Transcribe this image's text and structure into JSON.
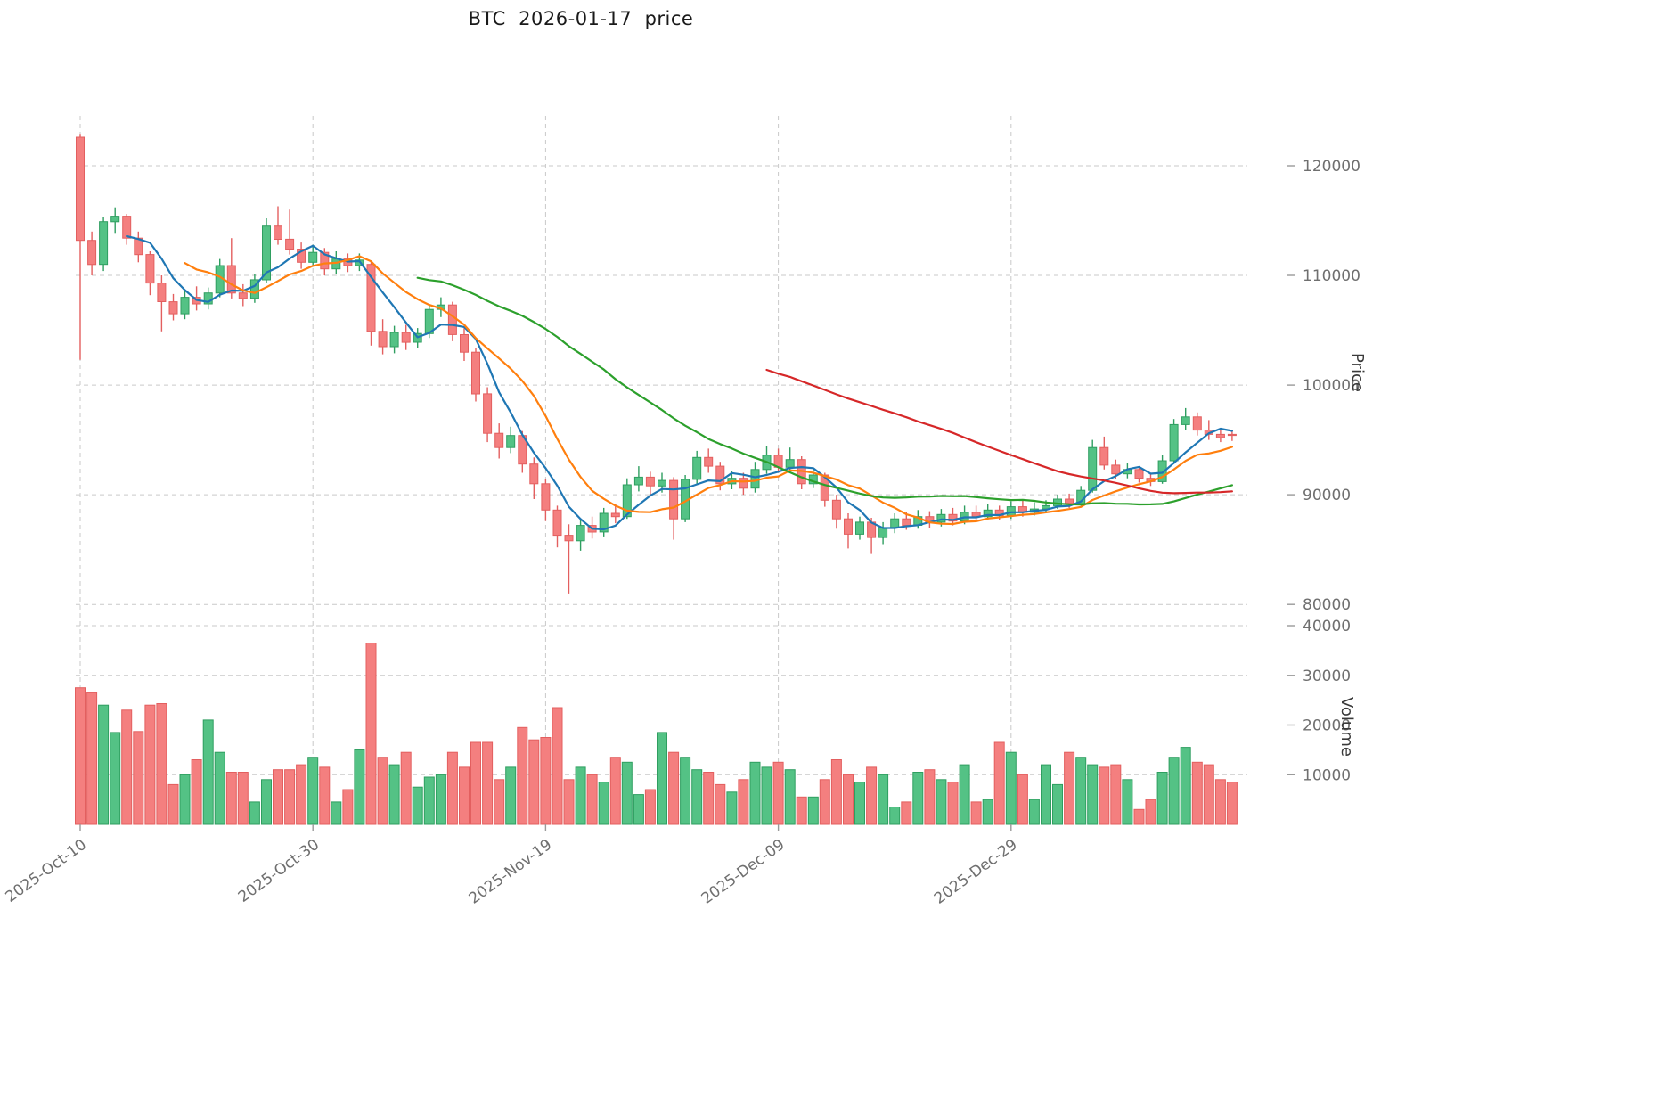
{
  "title": "BTC  2026-01-17  price",
  "axes": {
    "price_label": "Price",
    "volume_label": "Volume",
    "price_ticks": [
      80000,
      90000,
      100000,
      110000,
      120000
    ],
    "volume_ticks": [
      10000,
      20000,
      30000,
      40000
    ],
    "x_ticks": [
      {
        "index": 0,
        "label": "2025-Oct-10"
      },
      {
        "index": 20,
        "label": "2025-Oct-30"
      },
      {
        "index": 40,
        "label": "2025-Nov-19"
      },
      {
        "index": 60,
        "label": "2025-Dec-09"
      },
      {
        "index": 80,
        "label": "2025-Dec-29"
      }
    ]
  },
  "colors": {
    "up": "#54c285",
    "up_edge": "#2f9e60",
    "down": "#f47f7f",
    "down_edge": "#e35f5f",
    "ma_fast": "#1f77b4",
    "ma_mid": "#ff7f0e",
    "ma_slow": "#2ca02c",
    "ma_long": "#d62728",
    "grid": "#c9c9c9",
    "tick_mark": "#9a9a9a",
    "tick_text": "#6f6f6f",
    "title_text": "#1a1a1a"
  },
  "chart_data": {
    "type": "candlestick",
    "symbol": "BTC",
    "as_of_date": "2026-01-17",
    "start_date": "2025-10-10",
    "end_date": "2026-01-17",
    "grid": true,
    "price_axis_range": [
      79200,
      124550
    ],
    "volume_axis_range": [
      0,
      41800
    ],
    "moving_averages": [
      {
        "name": "MA5",
        "window": 5,
        "color_key": "ma_fast"
      },
      {
        "name": "MA10",
        "window": 10,
        "color_key": "ma_mid"
      },
      {
        "name": "MA30",
        "window": 30,
        "color_key": "ma_slow"
      },
      {
        "name": "MA60",
        "window": 60,
        "color_key": "ma_long"
      }
    ],
    "open": [
      122600,
      113200,
      111000,
      114900,
      115400,
      113400,
      111900,
      109300,
      107600,
      106500,
      108000,
      107400,
      108400,
      110900,
      108400,
      107900,
      109600,
      114500,
      113300,
      112400,
      111200,
      112100,
      110600,
      111500,
      110900,
      111000,
      104900,
      103500,
      104800,
      103900,
      104700,
      106900,
      107300,
      104600,
      103000,
      99200,
      95600,
      94300,
      95400,
      92800,
      91000,
      88600,
      86300,
      85800,
      87200,
      86600,
      88300,
      88000,
      90900,
      91600,
      90800,
      91300,
      87800,
      91400,
      93400,
      92600,
      91000,
      91500,
      90600,
      92300,
      93600,
      92500,
      93200,
      91000,
      91800,
      89500,
      87800,
      86400,
      87500,
      86100,
      87000,
      87800,
      87200,
      88000,
      87500,
      88200,
      87600,
      88400,
      88000,
      88600,
      88100,
      88900,
      88400,
      88700,
      89000,
      89600,
      89200,
      90400,
      94300,
      92700,
      91900,
      92300,
      91500,
      91200,
      93100,
      96400,
      97100,
      95900,
      95500,
      95500
    ],
    "high": [
      122900,
      114000,
      115300,
      116200,
      115600,
      114000,
      112200,
      110000,
      108300,
      108600,
      109000,
      108900,
      111500,
      113400,
      109200,
      110100,
      115200,
      116300,
      116000,
      113000,
      112800,
      112500,
      112200,
      112000,
      112000,
      111300,
      106000,
      105400,
      105500,
      105200,
      107400,
      108000,
      107600,
      105200,
      103400,
      99800,
      96500,
      96200,
      95800,
      93400,
      91400,
      89000,
      87300,
      87800,
      88000,
      88800,
      89200,
      91500,
      92600,
      92100,
      92000,
      91600,
      91800,
      94000,
      94200,
      93000,
      92200,
      92000,
      93000,
      94400,
      94200,
      94300,
      93500,
      92400,
      92000,
      90000,
      88300,
      88000,
      87900,
      87500,
      88300,
      88400,
      88600,
      88500,
      88700,
      88800,
      89000,
      89000,
      89200,
      89000,
      89400,
      89500,
      89300,
      89500,
      90000,
      90100,
      90800,
      95000,
      95300,
      93200,
      92900,
      92600,
      92000,
      93600,
      96900,
      97900,
      97500,
      96800,
      96100,
      95800
    ],
    "low": [
      102300,
      110000,
      110400,
      113800,
      112800,
      111200,
      108200,
      104900,
      105900,
      106000,
      106800,
      106900,
      108000,
      107900,
      107200,
      107500,
      109300,
      112800,
      111900,
      110600,
      110800,
      110000,
      110100,
      110300,
      110400,
      103600,
      102800,
      102900,
      103200,
      103400,
      104300,
      106200,
      104000,
      102200,
      98500,
      94800,
      93300,
      93800,
      92000,
      89600,
      87600,
      85200,
      81000,
      84900,
      86000,
      86200,
      87400,
      87800,
      90300,
      90000,
      90200,
      85900,
      87500,
      91000,
      92000,
      90400,
      90500,
      90000,
      90200,
      91900,
      92000,
      92100,
      90500,
      90600,
      88900,
      86900,
      85100,
      85900,
      84600,
      85500,
      86500,
      86800,
      86900,
      87000,
      87100,
      87200,
      87300,
      87600,
      87700,
      87700,
      87800,
      88000,
      88100,
      88300,
      88700,
      88800,
      89000,
      90200,
      92300,
      91400,
      91500,
      91100,
      90800,
      91000,
      92800,
      95900,
      95400,
      95000,
      94800,
      94900
    ],
    "close": [
      113200,
      111000,
      114900,
      115400,
      113400,
      111900,
      109300,
      107600,
      106500,
      108000,
      107400,
      108400,
      110900,
      108400,
      107900,
      109600,
      114500,
      113300,
      112400,
      111200,
      112100,
      110600,
      111500,
      110900,
      111400,
      104900,
      103500,
      104800,
      103900,
      104700,
      106900,
      107300,
      104600,
      103000,
      99200,
      95600,
      94300,
      95400,
      92800,
      91000,
      88600,
      86300,
      85800,
      87200,
      86600,
      88300,
      88000,
      90900,
      91600,
      90800,
      91300,
      87800,
      91400,
      93400,
      92600,
      91000,
      91500,
      90600,
      92300,
      93600,
      92500,
      93200,
      91000,
      91800,
      89500,
      87800,
      86400,
      87500,
      86100,
      87000,
      87800,
      87200,
      88000,
      87500,
      88200,
      87600,
      88400,
      88000,
      88600,
      88100,
      88900,
      88400,
      88700,
      89000,
      89600,
      89200,
      90400,
      94300,
      92700,
      91900,
      92300,
      91500,
      91200,
      93100,
      96400,
      97100,
      95900,
      95500,
      95200,
      95400
    ],
    "volume": [
      27500,
      26500,
      24000,
      18500,
      23000,
      18700,
      24000,
      24300,
      8000,
      10000,
      13000,
      21000,
      14500,
      10500,
      10500,
      4500,
      9000,
      11000,
      11000,
      12000,
      13500,
      11500,
      4500,
      7000,
      15000,
      36500,
      13500,
      12000,
      14500,
      7500,
      9500,
      10000,
      14500,
      11500,
      16500,
      16500,
      9000,
      11500,
      19500,
      17000,
      17500,
      23500,
      9000,
      11500,
      10000,
      8500,
      13500,
      12500,
      6000,
      7000,
      18500,
      14500,
      13500,
      11000,
      10500,
      8000,
      6500,
      9000,
      12500,
      11500,
      12500,
      11000,
      5500,
      5500,
      9000,
      13000,
      10000,
      8500,
      11500,
      10000,
      3500,
      4500,
      10500,
      11000,
      9000,
      8500,
      12000,
      4500,
      5000,
      16500,
      14500,
      10000,
      5000,
      12000,
      8000,
      14500,
      13500,
      12000,
      11500,
      12000,
      9000,
      3000,
      5000,
      10500,
      13500,
      15500,
      12500,
      12000,
      9000,
      8500
    ]
  }
}
